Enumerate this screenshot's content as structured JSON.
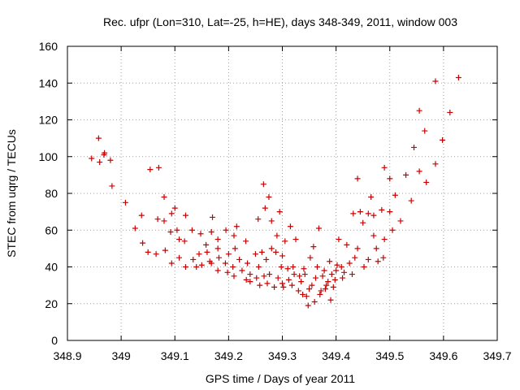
{
  "chart_data": {
    "type": "scatter",
    "title": "Rec. ufpr (Lon=310, Lat=-25, h=HE), days 348-349, 2011, window 003",
    "xlabel": "GPS time / Days of year 2011",
    "ylabel": "STEC from uqrg / TECUs",
    "xlim": [
      348.9,
      349.7
    ],
    "ylim": [
      0,
      160
    ],
    "xticks": [
      "348.9",
      "349",
      "349.1",
      "349.2",
      "349.3",
      "349.4",
      "349.5",
      "349.6",
      "349.7"
    ],
    "yticks": [
      "0",
      "20",
      "40",
      "60",
      "80",
      "100",
      "120",
      "140",
      "160"
    ],
    "grid": true,
    "marker": "+",
    "marker_color": "#cc0000",
    "series": [
      {
        "name": "STEC",
        "x": [
          348.945,
          348.958,
          348.96,
          348.968,
          348.969,
          348.98,
          348.983,
          349.008,
          349.026,
          349.038,
          349.04,
          349.05,
          349.054,
          349.065,
          349.068,
          349.07,
          349.08,
          349.08,
          349.082,
          349.092,
          349.094,
          349.094,
          349.1,
          349.104,
          349.108,
          349.108,
          349.118,
          349.12,
          349.12,
          349.132,
          349.134,
          349.14,
          349.145,
          349.148,
          349.15,
          349.158,
          349.16,
          349.165,
          349.168,
          349.168,
          349.17,
          349.18,
          349.18,
          349.18,
          349.182,
          349.194,
          349.195,
          349.198,
          349.2,
          349.208,
          349.21,
          349.21,
          349.212,
          349.215,
          349.22,
          349.225,
          349.232,
          349.233,
          349.235,
          349.24,
          349.24,
          349.25,
          349.252,
          349.255,
          349.256,
          349.258,
          349.262,
          349.265,
          349.266,
          349.268,
          349.27,
          349.272,
          349.275,
          349.276,
          349.28,
          349.28,
          349.285,
          349.288,
          349.29,
          349.292,
          349.295,
          349.298,
          349.3,
          349.3,
          349.302,
          349.305,
          349.31,
          349.312,
          349.315,
          349.318,
          349.32,
          349.322,
          349.325,
          349.33,
          349.332,
          349.335,
          349.338,
          349.34,
          349.342,
          349.345,
          349.348,
          349.35,
          349.352,
          349.355,
          349.358,
          349.36,
          349.362,
          349.365,
          349.368,
          349.37,
          349.372,
          349.375,
          349.378,
          349.38,
          349.382,
          349.385,
          349.388,
          349.39,
          349.392,
          349.395,
          349.398,
          349.4,
          349.402,
          349.405,
          349.41,
          349.412,
          349.415,
          349.42,
          349.425,
          349.43,
          349.432,
          349.435,
          349.44,
          349.44,
          349.445,
          349.45,
          349.452,
          349.46,
          349.46,
          349.465,
          349.47,
          349.47,
          349.475,
          349.478,
          349.485,
          349.488,
          349.49,
          349.49,
          349.5,
          349.5,
          349.505,
          349.51,
          349.52,
          349.53,
          349.54,
          349.545,
          349.555,
          349.555,
          349.565,
          349.568,
          349.585,
          349.585,
          349.598,
          349.612,
          349.628
        ],
        "y": [
          99,
          110,
          97,
          101,
          102,
          98,
          84,
          75,
          61,
          68,
          53,
          48,
          93,
          47,
          66,
          94,
          78,
          65,
          49,
          59,
          69,
          42,
          72,
          60,
          55,
          45,
          54,
          40,
          68,
          60,
          44,
          40,
          47,
          58,
          41,
          52,
          48,
          43,
          59,
          42,
          67,
          50,
          38,
          55,
          45,
          42,
          60,
          37,
          47,
          40,
          57,
          35,
          50,
          62,
          44,
          38,
          54,
          33,
          42,
          36,
          32,
          47,
          34,
          66,
          40,
          30,
          48,
          85,
          35,
          72,
          44,
          31,
          78,
          36,
          65,
          50,
          29,
          48,
          57,
          34,
          70,
          40,
          31,
          46,
          29,
          54,
          39,
          33,
          62,
          30,
          40,
          36,
          55,
          27,
          35,
          32,
          25,
          39,
          36,
          24,
          19,
          28,
          45,
          30,
          51,
          21,
          34,
          40,
          61,
          25,
          27,
          35,
          38,
          28,
          30,
          32,
          43,
          22,
          36,
          29,
          33,
          38,
          41,
          55,
          40,
          34,
          37,
          52,
          42,
          36,
          69,
          45,
          88,
          50,
          70,
          64,
          40,
          69,
          44,
          78,
          57,
          68,
          50,
          43,
          71,
          45,
          94,
          55,
          88,
          70,
          60,
          79,
          65,
          90,
          76,
          105,
          125,
          92,
          114,
          86,
          141,
          96,
          109,
          124,
          143
        ]
      }
    ]
  }
}
